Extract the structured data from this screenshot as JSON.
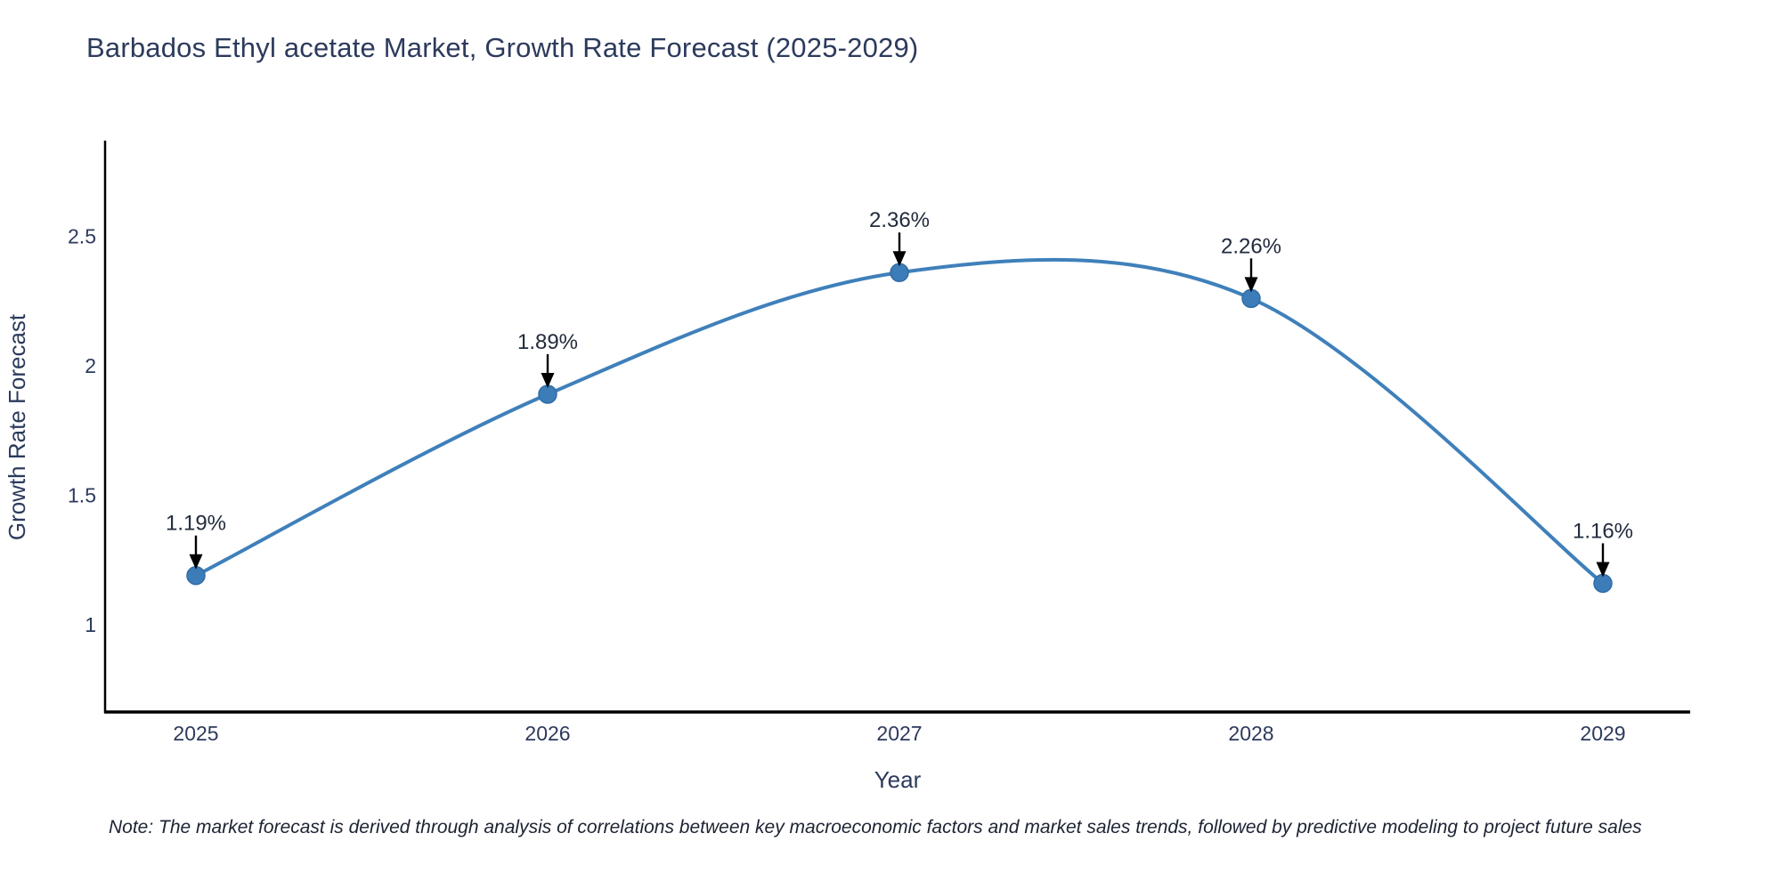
{
  "chart_data": {
    "type": "line",
    "title": "Barbados Ethyl acetate Market, Growth Rate Forecast (2025-2029)",
    "xlabel": "Year",
    "ylabel": "Growth Rate Forecast",
    "categories": [
      "2025",
      "2026",
      "2027",
      "2028",
      "2029"
    ],
    "values": [
      1.19,
      1.89,
      2.36,
      2.26,
      1.16
    ],
    "point_labels": [
      "1.19%",
      "1.89%",
      "2.36%",
      "2.26%",
      "1.16%"
    ],
    "series": [
      {
        "name": "Growth Rate Forecast",
        "values": [
          1.19,
          1.89,
          2.36,
          2.26,
          1.16
        ]
      }
    ],
    "yticks": [
      1,
      1.5,
      2,
      2.5
    ],
    "ylim": [
      0.66,
      2.86
    ],
    "line_shape": "spline",
    "grid": false,
    "legend_position": "none",
    "colors": {
      "line": "#3f80ba",
      "marker_fill": "#3c7cb8",
      "marker_edge": "#316da6",
      "text": "#2c3a5c",
      "annotation_text": "#222b3d",
      "annotation_arrow": "#000000",
      "axis_line": "#000000",
      "note_text": "#1c2333",
      "background": "#ffffff"
    }
  },
  "footnote": "Note: The market forecast is derived through analysis of correlations between key macroeconomic factors and market sales trends, followed by predictive modeling to project future sales"
}
